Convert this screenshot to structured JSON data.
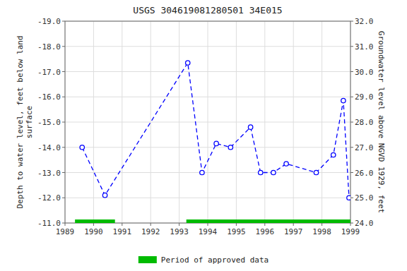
{
  "chart_data": {
    "type": "line",
    "title": "USGS 304619081280501 34E015",
    "x": [
      1989.6,
      1990.4,
      1993.3,
      1993.8,
      1994.3,
      1994.8,
      1995.5,
      1995.85,
      1996.3,
      1996.75,
      1997.8,
      1998.4,
      1998.75,
      1998.95
    ],
    "series": [
      {
        "type": "line",
        "color": "blue",
        "marker": "circle",
        "line_style": "dashed",
        "values": [
          -14.0,
          -12.1,
          -17.35,
          -13.0,
          -14.15,
          -14.0,
          -14.8,
          -13.0,
          -13.0,
          -13.35,
          -13.0,
          -13.7,
          -15.85,
          -12.0
        ]
      },
      {
        "type": "span",
        "name": "Period of approved data",
        "color": "#00bb00",
        "values": [
          [
            1989.35,
            1990.75
          ],
          [
            1993.25,
            1999.0
          ]
        ]
      }
    ],
    "xlim": [
      1989,
      1999
    ],
    "xticks": [
      1989,
      1990,
      1991,
      1992,
      1993,
      1994,
      1995,
      1996,
      1997,
      1998,
      1999
    ],
    "ylim": [
      -11.0,
      -19.0
    ],
    "yticks": [
      {
        "value": -19.0,
        "label": "-19.0"
      },
      {
        "value": -18.0,
        "label": "-18.0"
      },
      {
        "value": -17.0,
        "label": "-17.0"
      },
      {
        "value": -16.0,
        "label": "-16.0"
      },
      {
        "value": -15.0,
        "label": "-15.0"
      },
      {
        "value": -14.0,
        "label": "-14.0"
      },
      {
        "value": -13.0,
        "label": "-13.0"
      },
      {
        "value": -12.0,
        "label": "-12.0"
      },
      {
        "value": -11.0,
        "label": "-11.0"
      }
    ],
    "y2lim": [
      24.0,
      32.0
    ],
    "y2ticks": [
      {
        "value": 24.0,
        "label": "24.0"
      },
      {
        "value": 25.0,
        "label": "25.0"
      },
      {
        "value": 26.0,
        "label": "26.0"
      },
      {
        "value": 27.0,
        "label": "27.0"
      },
      {
        "value": 28.0,
        "label": "28.0"
      },
      {
        "value": 29.0,
        "label": "29.0"
      },
      {
        "value": 30.0,
        "label": "30.0"
      },
      {
        "value": 31.0,
        "label": "31.0"
      },
      {
        "value": 32.0,
        "label": "32.0"
      }
    ],
    "ylabel": "Depth to water level, feet below land\nsurface",
    "y2label": "Groundwater level above NGVD 1929, feet",
    "grid": true,
    "legend": "bottom"
  }
}
